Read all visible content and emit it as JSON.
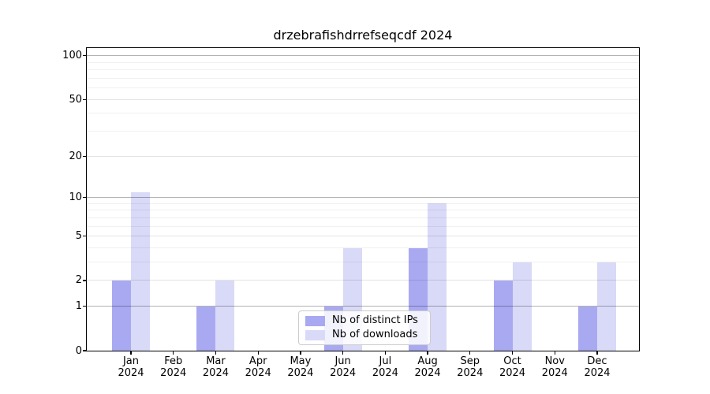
{
  "title": "drzebrafishdrrefseqcdf 2024",
  "chart_data": {
    "type": "bar",
    "title": "drzebrafishdrrefseqcdf 2024",
    "categories": [
      "Jan\n2024",
      "Feb\n2024",
      "Mar\n2024",
      "Apr\n2024",
      "May\n2024",
      "Jun\n2024",
      "Jul\n2024",
      "Aug\n2024",
      "Sep\n2024",
      "Oct\n2024",
      "Nov\n2024",
      "Dec\n2024"
    ],
    "series": [
      {
        "name": "Nb of distinct IPs",
        "color": "#a9a9f2",
        "values": [
          2,
          0,
          1,
          0,
          0,
          1,
          0,
          4,
          0,
          2,
          0,
          1
        ]
      },
      {
        "name": "Nb of downloads",
        "color": "#d9d9f8",
        "values": [
          11,
          0,
          2,
          0,
          0,
          4,
          0,
          9,
          0,
          3,
          0,
          3
        ]
      }
    ],
    "xlabel": "",
    "ylabel": "",
    "yscale": "log1p",
    "ylim": [
      0,
      113
    ],
    "ytick_values": [
      0,
      1,
      2,
      5,
      10,
      20,
      50,
      100
    ],
    "ytick_labels": [
      "0",
      "1",
      "2",
      "5",
      "10",
      "20",
      "50",
      "100"
    ],
    "grid_mid_values": [
      2,
      5,
      20,
      50
    ],
    "grid_major_values": [
      1,
      10,
      100
    ],
    "grid_minor_values": [
      3,
      4,
      6,
      7,
      8,
      9,
      30,
      40,
      60,
      70,
      80,
      90
    ],
    "grid": true,
    "legend_position": "lower center"
  },
  "colors": {
    "spine": "#000000",
    "background": "#ffffff",
    "legend_border": "#cccccc"
  }
}
